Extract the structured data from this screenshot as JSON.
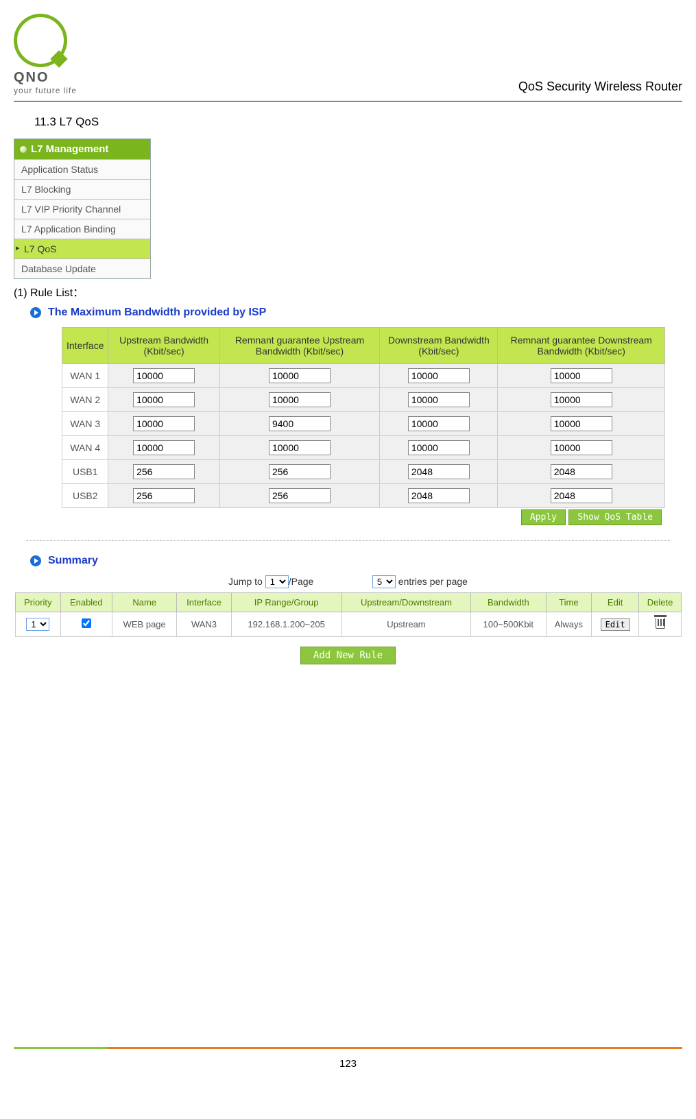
{
  "header": {
    "logo_text": "QNO",
    "logo_sub": "your future life",
    "doc_title": "QoS Security Wireless Router"
  },
  "section_heading": "11.3 L7 QoS",
  "menu": {
    "title": "L7 Management",
    "items": [
      {
        "label": "Application Status",
        "active": false
      },
      {
        "label": "L7 Blocking",
        "active": false
      },
      {
        "label": "L7 VIP Priority Channel",
        "active": false
      },
      {
        "label": "L7 Application Binding",
        "active": false
      },
      {
        "label": "L7 QoS",
        "active": true
      },
      {
        "label": "Database Update",
        "active": false
      }
    ]
  },
  "rule_list_label": "(1) Rule List：",
  "panel1": {
    "title": "The Maximum Bandwidth provided by ISP",
    "columns": [
      "Interface",
      "Upstream Bandwidth (Kbit/sec)",
      "Remnant guarantee Upstream Bandwidth (Kbit/sec)",
      "Downstream Bandwidth (Kbit/sec)",
      "Remnant guarantee Downstream Bandwidth (Kbit/sec)"
    ],
    "rows": [
      {
        "iface": "WAN 1",
        "up": "10000",
        "rem_up": "10000",
        "down": "10000",
        "rem_down": "10000"
      },
      {
        "iface": "WAN 2",
        "up": "10000",
        "rem_up": "10000",
        "down": "10000",
        "rem_down": "10000"
      },
      {
        "iface": "WAN 3",
        "up": "10000",
        "rem_up": "9400",
        "down": "10000",
        "rem_down": "10000"
      },
      {
        "iface": "WAN 4",
        "up": "10000",
        "rem_up": "10000",
        "down": "10000",
        "rem_down": "10000"
      },
      {
        "iface": "USB1",
        "up": "256",
        "rem_up": "256",
        "down": "2048",
        "rem_down": "2048"
      },
      {
        "iface": "USB2",
        "up": "256",
        "rem_up": "256",
        "down": "2048",
        "rem_down": "2048"
      }
    ],
    "apply_label": "Apply",
    "show_label": "Show QoS Table"
  },
  "panel2": {
    "title": "Summary",
    "paging": {
      "jump_label_pre": "Jump to",
      "jump_value": "1",
      "jump_label_post": "/Page",
      "entries_value": "5",
      "entries_label": "entries per page"
    },
    "columns": [
      "Priority",
      "Enabled",
      "Name",
      "Interface",
      "IP Range/Group",
      "Upstream/Downstream",
      "Bandwidth",
      "Time",
      "Edit",
      "Delete"
    ],
    "row": {
      "priority": "1",
      "enabled": true,
      "name": "WEB page",
      "interface": "WAN3",
      "ip_range": "192.168.1.200~205",
      "direction": "Upstream",
      "bandwidth": "100~500Kbit",
      "time": "Always",
      "edit_label": "Edit"
    },
    "add_rule_label": "Add New Rule"
  },
  "page_number": "123",
  "colors": {
    "green_accent": "#8cc63e",
    "menu_header": "#7ab51d",
    "menu_active": "#c3e650",
    "th_green": "#c3e650",
    "summary_th": "#e4f5bd",
    "link_blue": "#1a3cc9",
    "footer_orange": "#e57b1e"
  }
}
